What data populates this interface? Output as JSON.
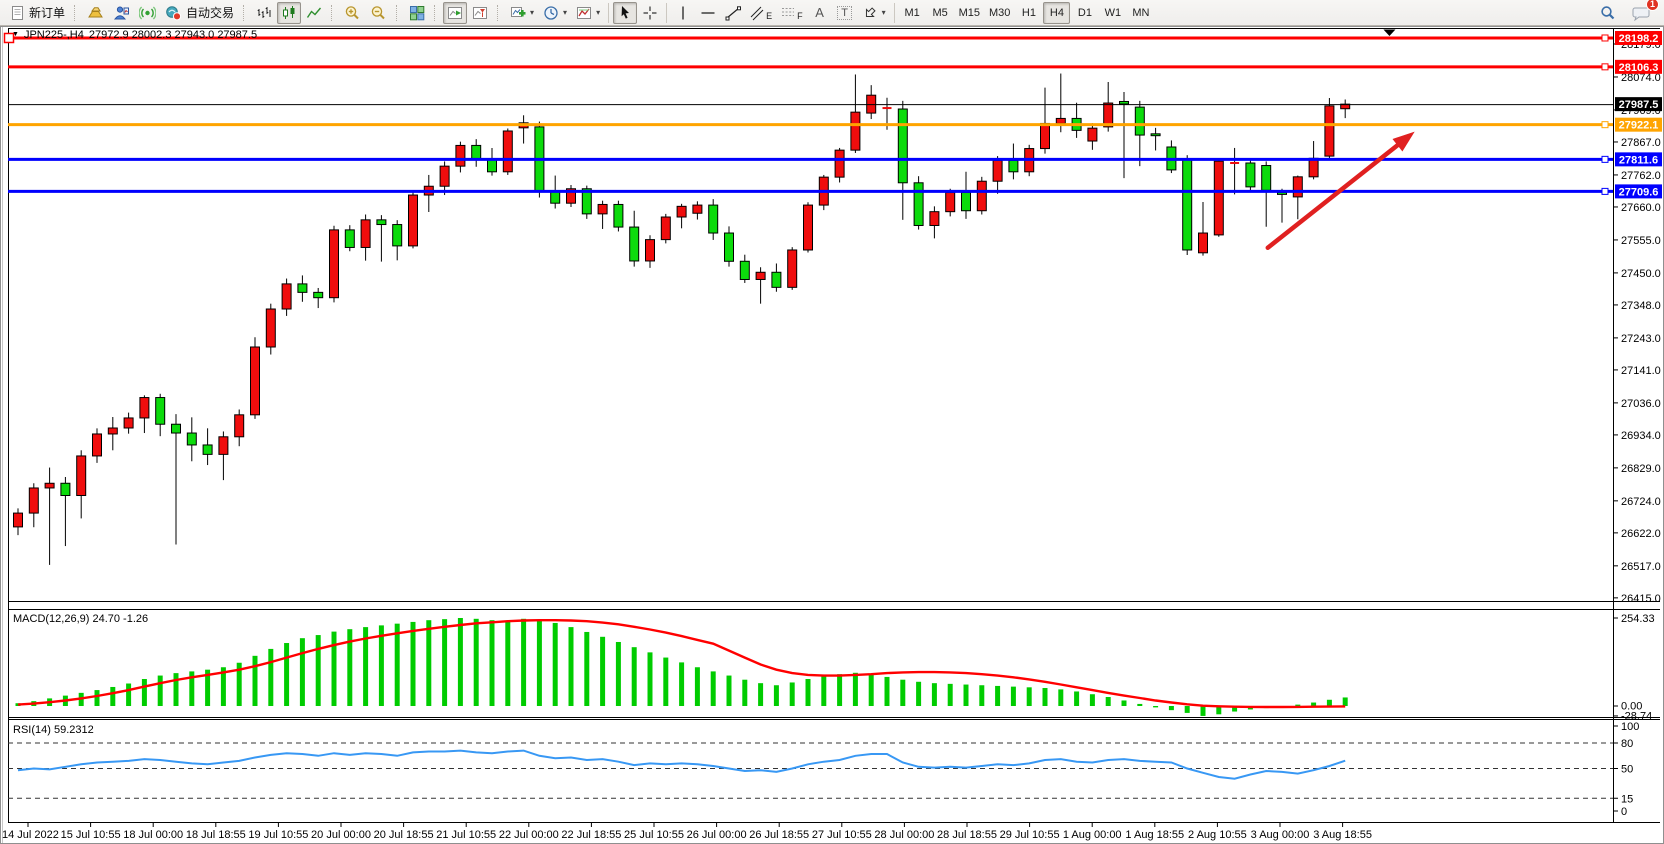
{
  "toolbar": {
    "new_order_label": "新订单",
    "autotrading_label": "自动交易",
    "timeframes": [
      "M1",
      "M5",
      "M15",
      "M30",
      "H1",
      "H4",
      "D1",
      "W1",
      "MN"
    ],
    "active_timeframe": "H4",
    "notification_badge": "1",
    "channel_letter": "E",
    "fibonacci_letter": "F",
    "text_letter": "A",
    "label_letter": "T"
  },
  "icons": {
    "dropdown_caret": "▾",
    "symbol_triangle": "▼"
  },
  "chart": {
    "symbol_title": "JPN225-,H4",
    "ohlc_text": "27972.9 28002.3 27943.0 27987.5",
    "macd_label": "MACD(12,26,9) 24.70 -1.26",
    "rsi_label": "RSI(14) 59.2312"
  },
  "chart_data": [
    {
      "type": "candlestick",
      "title": "JPN225-",
      "timeframe": "H4",
      "up_color": "#f00d0d",
      "down_color": "#0cdb0c",
      "outline_color": "#000000",
      "y_range": [
        26405,
        28230
      ],
      "price_ticks": [
        28179,
        28074,
        27969,
        27867,
        27762,
        27660,
        27555,
        27450,
        27348,
        27243,
        27141,
        27036,
        26934,
        26829,
        26724,
        26622,
        26517,
        26415
      ],
      "time_labels": [
        "14 Jul 2022",
        "15 Jul 10:55",
        "18 Jul 00:00",
        "18 Jul 18:55",
        "19 Jul 10:55",
        "20 Jul 00:00",
        "20 Jul 18:55",
        "21 Jul 10:55",
        "22 Jul 00:00",
        "22 Jul 18:55",
        "25 Jul 10:55",
        "26 Jul 00:00",
        "26 Jul 18:55",
        "27 Jul 10:55",
        "28 Jul 00:00",
        "28 Jul 18:55",
        "29 Jul 10:55",
        "1 Aug 00:00",
        "1 Aug 18:55",
        "2 Aug 10:55",
        "3 Aug 00:00",
        "3 Aug 18:55"
      ],
      "horizontal_lines": [
        {
          "price": 28198.2,
          "color": "#fe0000",
          "label": "28198.2"
        },
        {
          "price": 28106.3,
          "color": "#fe0000",
          "label": "28106.3"
        },
        {
          "price": 27922.1,
          "color": "#ffa400",
          "label": "27922.1"
        },
        {
          "price": 27811.6,
          "color": "#0000fe",
          "label": "27811.6"
        },
        {
          "price": 27709.6,
          "color": "#0000fe",
          "label": "27709.6"
        }
      ],
      "current_price": 27987.5,
      "current_price_label": "27987.5",
      "current_price_color": "#000000",
      "trend_arrow": {
        "from_bar": 79.1,
        "from_price": 27530,
        "to_bar": 88.4,
        "to_price": 27900,
        "color": "#e02020"
      },
      "shift_marker_bar": 86.8,
      "ohlc": [
        [
          26641,
          26700,
          26615,
          26685
        ],
        [
          26685,
          26780,
          26640,
          26765
        ],
        [
          26765,
          26830,
          26520,
          26780
        ],
        [
          26780,
          26800,
          26580,
          26741
        ],
        [
          26741,
          26885,
          26668,
          26867
        ],
        [
          26867,
          26955,
          26845,
          26937
        ],
        [
          26937,
          26991,
          26885,
          26956
        ],
        [
          26956,
          27005,
          26938,
          26988
        ],
        [
          26988,
          27060,
          26940,
          27053
        ],
        [
          27053,
          27065,
          26930,
          26968
        ],
        [
          26968,
          27000,
          26585,
          26940
        ],
        [
          26940,
          26990,
          26850,
          26902
        ],
        [
          26902,
          26955,
          26838,
          26872
        ],
        [
          26872,
          26945,
          26790,
          26928
        ],
        [
          26928,
          27015,
          26898,
          26998
        ],
        [
          26998,
          27245,
          26985,
          27214
        ],
        [
          27214,
          27352,
          27190,
          27335
        ],
        [
          27335,
          27432,
          27313,
          27415
        ],
        [
          27415,
          27442,
          27358,
          27388
        ],
        [
          27388,
          27402,
          27338,
          27371
        ],
        [
          27371,
          27600,
          27356,
          27587
        ],
        [
          27587,
          27602,
          27519,
          27531
        ],
        [
          27531,
          27636,
          27489,
          27619
        ],
        [
          27619,
          27634,
          27486,
          27604
        ],
        [
          27604,
          27618,
          27490,
          27536
        ],
        [
          27536,
          27712,
          27528,
          27698
        ],
        [
          27698,
          27762,
          27644,
          27726
        ],
        [
          27726,
          27805,
          27698,
          27790
        ],
        [
          27790,
          27868,
          27770,
          27856
        ],
        [
          27856,
          27876,
          27788,
          27812
        ],
        [
          27812,
          27848,
          27760,
          27772
        ],
        [
          27772,
          27910,
          27762,
          27902
        ],
        [
          27912,
          27952,
          27862,
          27928
        ],
        [
          27915,
          27932,
          27690,
          27708
        ],
        [
          27708,
          27760,
          27655,
          27672
        ],
        [
          27672,
          27730,
          27660,
          27718
        ],
        [
          27718,
          27728,
          27622,
          27638
        ],
        [
          27638,
          27680,
          27590,
          27668
        ],
        [
          27668,
          27680,
          27582,
          27596
        ],
        [
          27596,
          27648,
          27470,
          27488
        ],
        [
          27488,
          27570,
          27466,
          27556
        ],
        [
          27556,
          27638,
          27544,
          27628
        ],
        [
          27628,
          27670,
          27592,
          27662
        ],
        [
          27640,
          27678,
          27620,
          27666
        ],
        [
          27666,
          27685,
          27555,
          27577
        ],
        [
          27577,
          27598,
          27470,
          27487
        ],
        [
          27487,
          27508,
          27418,
          27429
        ],
        [
          27429,
          27468,
          27352,
          27452
        ],
        [
          27452,
          27480,
          27390,
          27404
        ],
        [
          27404,
          27532,
          27396,
          27523
        ],
        [
          27523,
          27675,
          27515,
          27666
        ],
        [
          27666,
          27762,
          27650,
          27755
        ],
        [
          27755,
          27848,
          27738,
          27841
        ],
        [
          27841,
          28082,
          27832,
          27962
        ],
        [
          27959,
          28048,
          27940,
          28016
        ],
        [
          27970,
          28008,
          27906,
          27975
        ],
        [
          27972,
          27998,
          27619,
          27737
        ],
        [
          27737,
          27758,
          27588,
          27601
        ],
        [
          27601,
          27662,
          27560,
          27645
        ],
        [
          27645,
          27718,
          27630,
          27706
        ],
        [
          27706,
          27772,
          27622,
          27648
        ],
        [
          27648,
          27756,
          27636,
          27742
        ],
        [
          27742,
          27822,
          27702,
          27808
        ],
        [
          27808,
          27862,
          27748,
          27772
        ],
        [
          27772,
          27858,
          27758,
          27846
        ],
        [
          27846,
          28040,
          27830,
          27926
        ],
        [
          27926,
          28085,
          27898,
          27942
        ],
        [
          27942,
          27992,
          27880,
          27904
        ],
        [
          27870,
          27927,
          27842,
          27911
        ],
        [
          27915,
          28058,
          27900,
          27991
        ],
        [
          27996,
          28026,
          27752,
          27988
        ],
        [
          27978,
          27998,
          27790,
          27889
        ],
        [
          27893,
          27912,
          27840,
          27887
        ],
        [
          27851,
          27872,
          27768,
          27778
        ],
        [
          27813,
          27825,
          27507,
          27523
        ],
        [
          27514,
          27676,
          27505,
          27577
        ],
        [
          27571,
          27812,
          27565,
          27806
        ],
        [
          27800,
          27848,
          27700,
          27800
        ],
        [
          27800,
          27815,
          27710,
          27724
        ],
        [
          27792,
          27805,
          27597,
          27713
        ],
        [
          27706,
          27718,
          27610,
          27700
        ],
        [
          27692,
          27760,
          27621,
          27756
        ],
        [
          27756,
          27870,
          27748,
          27815
        ],
        [
          27822,
          28007,
          27815,
          27982
        ],
        [
          27972.9,
          28002.3,
          27943.0,
          27987.5
        ]
      ]
    },
    {
      "type": "bar",
      "title": "MACD(12,26,9)",
      "current_values": [
        24.7,
        -1.26
      ],
      "scale_labels": [
        "254.33",
        "0.00",
        "-28.74"
      ],
      "range": [
        -28.74,
        254.33
      ],
      "histogram_color": "#00cc00",
      "signal_color": "#ff0000",
      "histogram": [
        8,
        14,
        22,
        30,
        38,
        46,
        55,
        65,
        78,
        88,
        95,
        100,
        105,
        112,
        125,
        145,
        165,
        182,
        196,
        205,
        215,
        222,
        228,
        233,
        238,
        243,
        248,
        251,
        254.33,
        252,
        248,
        244,
        252,
        250,
        240,
        228,
        214,
        200,
        185,
        170,
        155,
        140,
        126,
        112,
        100,
        88,
        76,
        66,
        60,
        68,
        78,
        86,
        92,
        96,
        92,
        84,
        76,
        70,
        66,
        64,
        62,
        60,
        58,
        56,
        54,
        52,
        48,
        42,
        34,
        26,
        16,
        6,
        -4,
        -12,
        -20,
        -28.74,
        -24,
        -16,
        -10,
        -6,
        -2,
        4,
        10,
        18,
        24.7
      ],
      "signal": [
        4,
        7,
        11,
        16,
        22,
        29,
        37,
        46,
        56,
        66,
        75,
        83,
        90,
        97,
        105,
        115,
        127,
        140,
        153,
        165,
        176,
        186,
        195,
        203,
        210,
        217,
        223,
        229,
        234,
        239,
        242,
        245,
        247,
        248,
        248,
        247,
        245,
        241,
        236,
        229,
        221,
        212,
        202,
        191,
        180,
        160,
        140,
        120,
        105,
        95,
        90,
        88,
        88,
        90,
        92,
        95,
        97,
        98,
        98,
        97,
        95,
        92,
        88,
        83,
        77,
        70,
        62,
        54,
        46,
        38,
        30,
        23,
        16,
        10,
        5,
        1,
        -1,
        -2,
        -2.5,
        -3,
        -3,
        -2.5,
        -2,
        -1.6,
        -1.26
      ]
    },
    {
      "type": "line",
      "title": "RSI(14)",
      "current_value": 59.2312,
      "range": [
        0,
        100
      ],
      "levels": [
        80,
        50,
        15
      ],
      "scale_labels": [
        "100",
        "80",
        "50",
        "15",
        "0"
      ],
      "line_color": "#3898f4",
      "values": [
        48,
        50,
        49,
        52,
        55,
        57,
        58,
        59,
        61,
        60,
        58,
        56,
        55,
        57,
        59,
        63,
        66,
        68,
        67,
        65,
        68,
        66,
        68,
        67,
        65,
        69,
        70,
        70,
        71,
        69,
        68,
        70,
        71,
        65,
        62,
        63,
        60,
        61,
        58,
        54,
        56,
        55,
        56,
        55,
        53,
        50,
        47,
        48,
        46,
        50,
        55,
        58,
        60,
        65,
        67,
        67,
        57,
        52,
        51,
        52,
        51,
        53,
        55,
        54,
        56,
        60,
        61,
        58,
        57,
        60,
        61,
        59,
        58,
        57,
        50,
        45,
        40,
        38,
        43,
        47,
        46,
        44,
        48,
        53,
        59.2
      ]
    }
  ]
}
